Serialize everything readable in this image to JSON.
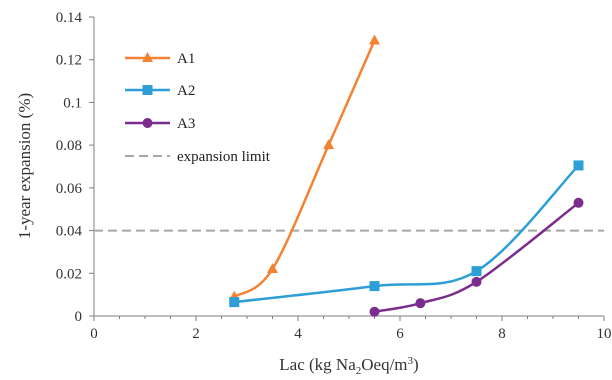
{
  "chart_data": {
    "type": "line",
    "title": "",
    "xlabel": "Lac (kg Na2Oeq/m3)",
    "xlabel_parts": {
      "pre": "Lac (kg Na",
      "sub1": "2",
      "mid": "Oeq/m",
      "sup": "3",
      "post": ")"
    },
    "ylabel": "1-year expansion (%)",
    "xlim": [
      0,
      10
    ],
    "ylim": [
      0,
      0.14
    ],
    "x_ticks": [
      "0",
      "2",
      "4",
      "6",
      "8",
      "10"
    ],
    "y_ticks": [
      "0",
      "0.02",
      "0.04",
      "0.06",
      "0.08",
      "0.1",
      "0.12",
      "0.14"
    ],
    "grid": false,
    "legend_position": "top-left",
    "series": [
      {
        "name": "A1",
        "color": "#F58233",
        "marker": "triangle",
        "points": [
          [
            2.75,
            0.009
          ],
          [
            3.5,
            0.022
          ],
          [
            4.6,
            0.08
          ],
          [
            5.5,
            0.129
          ]
        ]
      },
      {
        "name": "A2",
        "color": "#2E9FD6",
        "marker": "square",
        "points": [
          [
            2.75,
            0.0065
          ],
          [
            5.5,
            0.014
          ],
          [
            7.5,
            0.021
          ],
          [
            9.5,
            0.0705
          ]
        ]
      },
      {
        "name": "A3",
        "color": "#7B2D8E",
        "marker": "circle",
        "points": [
          [
            5.5,
            0.002
          ],
          [
            6.4,
            0.006
          ],
          [
            7.5,
            0.016
          ],
          [
            9.5,
            0.053
          ]
        ]
      }
    ],
    "reference_line": {
      "name": "expansion limit",
      "y": 0.04,
      "color": "#A6A6A6",
      "style": "dashed"
    }
  }
}
